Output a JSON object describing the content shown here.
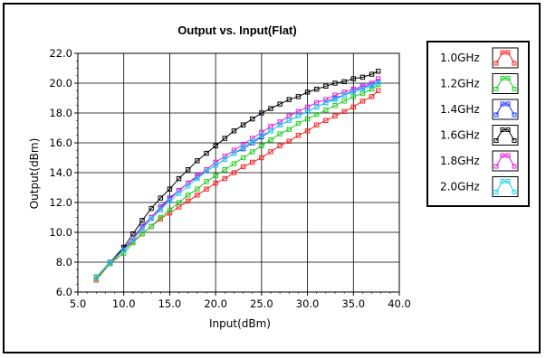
{
  "chart_data": {
    "type": "line",
    "title": "Output vs. Input(Flat)",
    "xlabel": "Input(dBm)",
    "ylabel": "Output(dBm)",
    "xlim": [
      5.0,
      40.0
    ],
    "ylim": [
      6.0,
      22.0
    ],
    "xticks": [
      "5.0",
      "10.0",
      "15.0",
      "20.0",
      "25.0",
      "30.0",
      "35.0",
      "40.0"
    ],
    "yticks": [
      "6.0",
      "8.0",
      "10.0",
      "12.0",
      "14.0",
      "16.0",
      "18.0",
      "20.0",
      "22.0"
    ],
    "grid": true,
    "legend_position": "right",
    "series": [
      {
        "name": "1.0GHz",
        "color": "#ff2020",
        "x": [
          7.0,
          8.5,
          10.0,
          11.0,
          12.0,
          13.0,
          14.0,
          15.0,
          16.0,
          17.0,
          18.0,
          19.0,
          20.0,
          21.0,
          22.0,
          23.0,
          24.0,
          25.0,
          26.0,
          27.0,
          28.0,
          29.0,
          30.0,
          31.0,
          32.0,
          33.0,
          34.0,
          35.0,
          36.0,
          37.0,
          37.7
        ],
        "y": [
          6.8,
          7.9,
          8.8,
          9.4,
          9.9,
          10.4,
          10.9,
          11.3,
          11.7,
          12.1,
          12.5,
          12.9,
          13.3,
          13.6,
          14.0,
          14.4,
          14.7,
          15.0,
          15.4,
          15.8,
          16.1,
          16.5,
          16.8,
          17.2,
          17.5,
          17.8,
          18.1,
          18.4,
          18.8,
          19.1,
          19.5
        ]
      },
      {
        "name": "1.2GHz",
        "color": "#20d020",
        "x": [
          7.0,
          8.5,
          10.0,
          11.0,
          12.0,
          13.0,
          14.0,
          15.0,
          16.0,
          17.0,
          18.0,
          19.0,
          20.0,
          21.0,
          22.0,
          23.0,
          24.0,
          25.0,
          26.0,
          27.0,
          28.0,
          29.0,
          30.0,
          31.0,
          32.0,
          33.0,
          34.0,
          35.0,
          36.0,
          37.0,
          37.7
        ],
        "y": [
          6.9,
          7.9,
          8.6,
          9.3,
          9.9,
          10.4,
          11.0,
          11.5,
          12.0,
          12.5,
          12.9,
          13.4,
          13.8,
          14.2,
          14.6,
          15.0,
          15.4,
          15.8,
          16.2,
          16.6,
          16.9,
          17.3,
          17.6,
          17.9,
          18.2,
          18.5,
          18.8,
          19.1,
          19.3,
          19.6,
          19.9
        ]
      },
      {
        "name": "1.4GHz",
        "color": "#2030ff",
        "x": [
          7.0,
          8.5,
          10.0,
          11.0,
          12.0,
          13.0,
          14.0,
          15.0,
          16.0,
          17.0,
          18.0,
          19.0,
          20.0,
          21.0,
          22.0,
          23.0,
          24.0,
          25.0,
          26.0,
          27.0,
          28.0,
          29.0,
          30.0,
          31.0,
          32.0,
          33.0,
          34.0,
          35.0,
          36.0,
          37.0,
          37.7
        ],
        "y": [
          7.0,
          8.0,
          8.9,
          9.6,
          10.4,
          11.0,
          11.7,
          12.3,
          12.8,
          13.3,
          13.7,
          14.1,
          14.5,
          14.9,
          15.3,
          15.6,
          16.0,
          16.4,
          16.8,
          17.2,
          17.5,
          17.8,
          18.1,
          18.4,
          18.7,
          19.0,
          19.2,
          19.5,
          19.7,
          19.9,
          20.1
        ]
      },
      {
        "name": "1.6GHz",
        "color": "#000000",
        "x": [
          7.0,
          8.5,
          10.0,
          11.0,
          12.0,
          13.0,
          14.0,
          15.0,
          16.0,
          17.0,
          18.0,
          19.0,
          20.0,
          21.0,
          22.0,
          23.0,
          24.0,
          25.0,
          26.0,
          27.0,
          28.0,
          29.0,
          30.0,
          31.0,
          32.0,
          33.0,
          34.0,
          35.0,
          36.0,
          37.0,
          37.7
        ],
        "y": [
          7.0,
          8.0,
          9.0,
          9.9,
          10.8,
          11.6,
          12.3,
          12.9,
          13.6,
          14.2,
          14.8,
          15.3,
          15.8,
          16.3,
          16.8,
          17.2,
          17.6,
          18.0,
          18.3,
          18.6,
          18.9,
          19.1,
          19.4,
          19.6,
          19.8,
          20.0,
          20.1,
          20.3,
          20.4,
          20.6,
          20.8
        ]
      },
      {
        "name": "1.8GHz",
        "color": "#e020e0",
        "x": [
          7.0,
          8.5,
          10.0,
          11.0,
          12.0,
          13.0,
          14.0,
          15.0,
          16.0,
          17.0,
          18.0,
          19.0,
          20.0,
          21.0,
          22.0,
          23.0,
          24.0,
          25.0,
          26.0,
          27.0,
          28.0,
          29.0,
          30.0,
          31.0,
          32.0,
          33.0,
          34.0,
          35.0,
          36.0,
          37.0,
          37.7
        ],
        "y": [
          7.0,
          8.0,
          8.8,
          9.6,
          10.3,
          11.0,
          11.6,
          12.2,
          12.8,
          13.3,
          13.8,
          14.2,
          14.7,
          15.1,
          15.5,
          15.9,
          16.3,
          16.7,
          17.1,
          17.4,
          17.8,
          18.1,
          18.4,
          18.7,
          18.9,
          19.2,
          19.4,
          19.6,
          19.8,
          20.0,
          20.3
        ]
      },
      {
        "name": "2.0GHz",
        "color": "#20d8e8",
        "x": [
          7.0,
          8.5,
          10.0,
          11.0,
          12.0,
          13.0,
          14.0,
          15.0,
          16.0,
          17.0,
          18.0,
          19.0,
          20.0,
          21.0,
          22.0,
          23.0,
          24.0,
          25.0,
          26.0,
          27.0,
          28.0,
          29.0,
          30.0,
          31.0,
          32.0,
          33.0,
          34.0,
          35.0,
          36.0,
          37.0,
          37.7
        ],
        "y": [
          7.0,
          8.0,
          8.8,
          9.5,
          10.2,
          10.9,
          11.5,
          12.1,
          12.6,
          13.1,
          13.6,
          14.1,
          14.5,
          14.9,
          15.3,
          15.7,
          16.1,
          16.5,
          16.8,
          17.2,
          17.5,
          17.8,
          18.1,
          18.4,
          18.7,
          18.9,
          19.2,
          19.4,
          19.6,
          19.8,
          20.0
        ]
      }
    ]
  }
}
